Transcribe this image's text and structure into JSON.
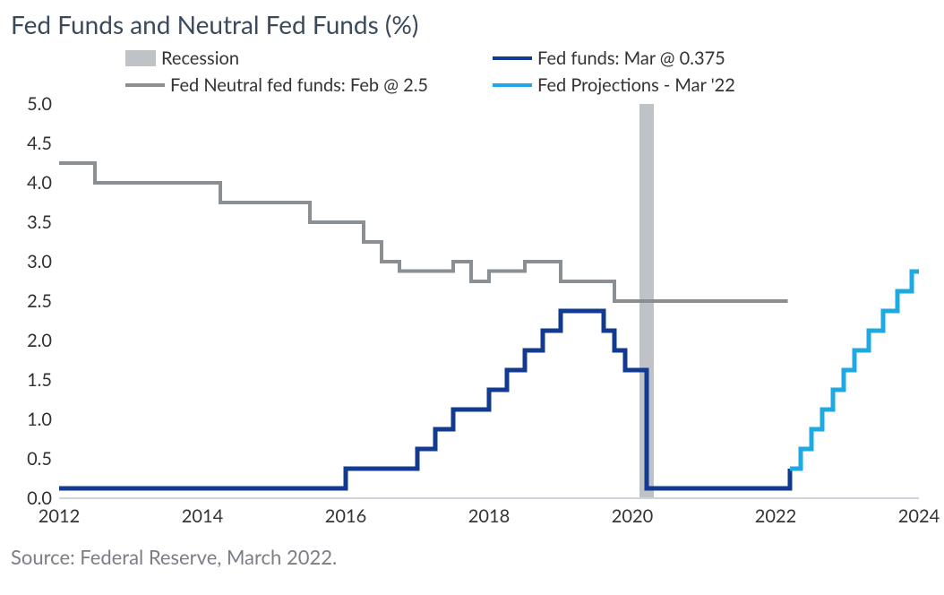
{
  "chart": {
    "type": "line",
    "title": "Fed Funds and Neutral Fed Funds (%)",
    "source": "Source: Federal Reserve, March 2022.",
    "background_color": "#ffffff",
    "title_color": "#3a4a5a",
    "title_fontsize": 28,
    "label_fontsize": 20,
    "xlim": [
      2012,
      2024
    ],
    "ylim": [
      0,
      5
    ],
    "x_ticks": [
      2012,
      2014,
      2016,
      2018,
      2020,
      2022,
      2024
    ],
    "y_ticks": [
      0.0,
      0.5,
      1.0,
      1.5,
      2.0,
      2.5,
      3.0,
      3.5,
      4.0,
      4.5,
      5.0
    ],
    "y_tick_labels": [
      "0.0",
      "0.5",
      "1.0",
      "1.5",
      "2.0",
      "2.5",
      "3.0",
      "3.5",
      "4.0",
      "4.5",
      "5.0"
    ],
    "axis_color": "#cfd4da",
    "baseline_color": "#cfd4da",
    "legend": [
      {
        "key": "recession",
        "label": "Recession",
        "type": "box",
        "color": "#bfc3c7"
      },
      {
        "key": "fed_funds",
        "label": "Fed funds: Mar @ 0.375",
        "type": "line",
        "color": "#123a91"
      },
      {
        "key": "neutral",
        "label": "Fed Neutral fed funds: Feb @ 2.5",
        "type": "line",
        "color": "#8a8f94"
      },
      {
        "key": "projections",
        "label": "Fed Projections - Mar '22",
        "type": "line",
        "color": "#1fa9e3"
      }
    ],
    "recession_bands": [
      {
        "start": 2020.1,
        "end": 2020.3,
        "color": "#bfc3c7"
      }
    ],
    "series": {
      "neutral": {
        "color": "#8a8f94",
        "width": 4,
        "step": true,
        "points": [
          [
            2012.0,
            4.25
          ],
          [
            2012.25,
            4.25
          ],
          [
            2012.5,
            4.0
          ],
          [
            2013.5,
            4.0
          ],
          [
            2014.0,
            4.0
          ],
          [
            2014.25,
            3.75
          ],
          [
            2015.25,
            3.75
          ],
          [
            2015.5,
            3.5
          ],
          [
            2016.0,
            3.5
          ],
          [
            2016.25,
            3.25
          ],
          [
            2016.5,
            3.0
          ],
          [
            2016.75,
            2.88
          ],
          [
            2017.25,
            2.88
          ],
          [
            2017.5,
            3.0
          ],
          [
            2017.75,
            2.75
          ],
          [
            2018.0,
            2.88
          ],
          [
            2018.25,
            2.88
          ],
          [
            2018.5,
            3.0
          ],
          [
            2018.75,
            3.0
          ],
          [
            2019.0,
            2.75
          ],
          [
            2019.5,
            2.75
          ],
          [
            2019.75,
            2.5
          ],
          [
            2020.5,
            2.5
          ],
          [
            2021.25,
            2.5
          ],
          [
            2022.17,
            2.5
          ]
        ]
      },
      "fed_funds": {
        "color": "#123a91",
        "width": 5,
        "step": true,
        "points": [
          [
            2012.0,
            0.125
          ],
          [
            2015.75,
            0.125
          ],
          [
            2016.0,
            0.375
          ],
          [
            2016.75,
            0.375
          ],
          [
            2017.0,
            0.625
          ],
          [
            2017.25,
            0.875
          ],
          [
            2017.5,
            1.125
          ],
          [
            2017.75,
            1.125
          ],
          [
            2018.0,
            1.375
          ],
          [
            2018.25,
            1.625
          ],
          [
            2018.5,
            1.875
          ],
          [
            2018.75,
            2.125
          ],
          [
            2019.0,
            2.375
          ],
          [
            2019.5,
            2.375
          ],
          [
            2019.6,
            2.125
          ],
          [
            2019.75,
            1.875
          ],
          [
            2019.9,
            1.625
          ],
          [
            2020.1,
            1.625
          ],
          [
            2020.2,
            0.125
          ],
          [
            2022.1,
            0.125
          ],
          [
            2022.2,
            0.375
          ]
        ]
      },
      "projections": {
        "color": "#1fa9e3",
        "width": 5,
        "step": true,
        "points": [
          [
            2022.2,
            0.375
          ],
          [
            2022.35,
            0.625
          ],
          [
            2022.5,
            0.875
          ],
          [
            2022.65,
            1.125
          ],
          [
            2022.8,
            1.375
          ],
          [
            2022.95,
            1.625
          ],
          [
            2023.1,
            1.875
          ],
          [
            2023.3,
            2.125
          ],
          [
            2023.5,
            2.375
          ],
          [
            2023.7,
            2.625
          ],
          [
            2023.9,
            2.875
          ],
          [
            2024.0,
            2.875
          ]
        ]
      }
    }
  }
}
